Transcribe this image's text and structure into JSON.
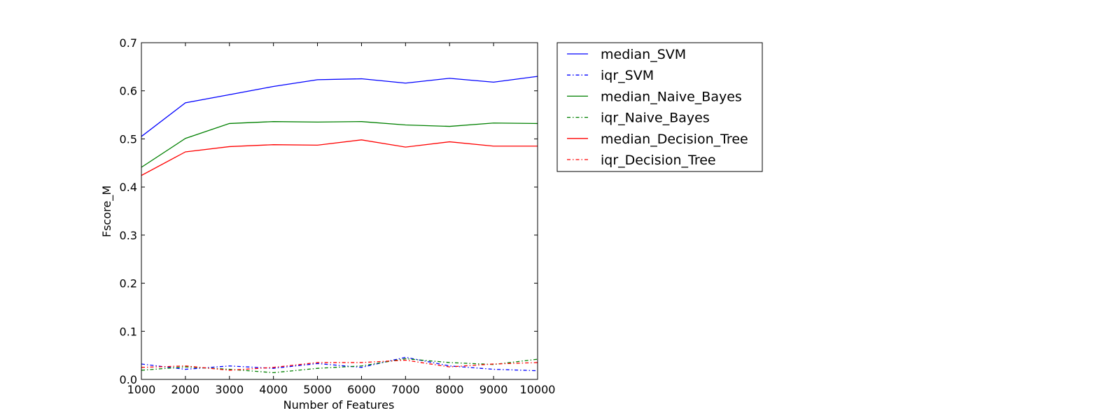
{
  "chart_data": {
    "type": "line",
    "title": "",
    "xlabel": "Number of Features",
    "ylabel": "Fscore_M",
    "xlim": [
      1000,
      10000
    ],
    "ylim": [
      0.0,
      0.7
    ],
    "xticks": [
      1000,
      2000,
      3000,
      4000,
      5000,
      6000,
      7000,
      8000,
      9000,
      10000
    ],
    "yticks": [
      0.0,
      0.1,
      0.2,
      0.3,
      0.4,
      0.5,
      0.6,
      0.7
    ],
    "x": [
      1000,
      2000,
      3000,
      4000,
      5000,
      6000,
      7000,
      8000,
      9000,
      10000
    ],
    "grid": false,
    "legend_position": "outside-right",
    "series": [
      {
        "name": "median_SVM",
        "color": "#0000ff",
        "style": "solid",
        "values": [
          0.505,
          0.575,
          0.592,
          0.609,
          0.623,
          0.625,
          0.616,
          0.626,
          0.618,
          0.63
        ]
      },
      {
        "name": "iqr_SVM",
        "color": "#0000ff",
        "style": "dashdot",
        "values": [
          0.032,
          0.021,
          0.028,
          0.023,
          0.033,
          0.025,
          0.046,
          0.028,
          0.021,
          0.018
        ]
      },
      {
        "name": "median_Naive_Bayes",
        "color": "#008000",
        "style": "solid",
        "values": [
          0.441,
          0.501,
          0.532,
          0.536,
          0.535,
          0.536,
          0.529,
          0.526,
          0.533,
          0.532
        ]
      },
      {
        "name": "iqr_Naive_Bayes",
        "color": "#008000",
        "style": "dashdot",
        "values": [
          0.019,
          0.026,
          0.021,
          0.014,
          0.023,
          0.028,
          0.043,
          0.035,
          0.031,
          0.042
        ]
      },
      {
        "name": "median_Decision_Tree",
        "color": "#ff0000",
        "style": "solid",
        "values": [
          0.424,
          0.473,
          0.484,
          0.488,
          0.487,
          0.498,
          0.483,
          0.494,
          0.485,
          0.485
        ]
      },
      {
        "name": "iqr_Decision_Tree",
        "color": "#ff0000",
        "style": "dashdot",
        "values": [
          0.025,
          0.028,
          0.019,
          0.025,
          0.035,
          0.035,
          0.04,
          0.026,
          0.032,
          0.035
        ]
      }
    ]
  }
}
